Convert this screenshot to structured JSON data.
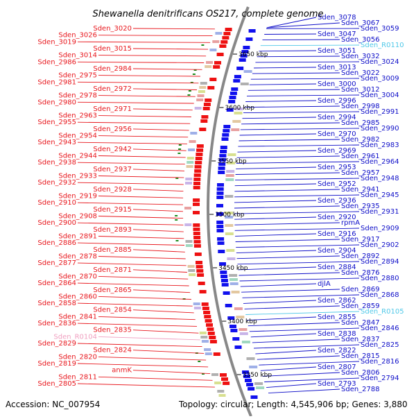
{
  "title": "Shewanella denitrificans OS217, complete genome",
  "accession": "Accession: NC_007954",
  "topology": "Topology: circular; Length: 4,545,906 bp; Genes: 3,880",
  "colors": {
    "left_label": "#e8161c",
    "right_label": "#0c0cc8",
    "rna_left": "#f0a0c0",
    "rna_right": "#4fc8e8",
    "backbone": "#888888",
    "forward_strand": "#ee1111",
    "reverse_strand": "#1111ee",
    "marker": "#1a8a1a"
  },
  "kbp_marks": [
    "3650 kbp",
    "3600 kbp",
    "3550 kbp",
    "3500 kbp",
    "3450 kbp",
    "3400 kbp",
    "3350 kbp"
  ],
  "left_genes": [
    "Sden_3020",
    "Sden_3026",
    "Sden_3019",
    "Sden_3015",
    "Sden_3014",
    "Sden_2986",
    "Sden_2984",
    "Sden_2975",
    "Sden_2981",
    "Sden_2972",
    "Sden_2978",
    "Sden_2980",
    "Sden_2971",
    "Sden_2963",
    "Sden_2955",
    "Sden_2956",
    "Sden_2954",
    "Sden_2943",
    "Sden_2942",
    "Sden_2944",
    "Sden_2938",
    "Sden_2937",
    "Sden_2933",
    "Sden_2932",
    "Sden_2928",
    "Sden_2919",
    "Sden_2910",
    "Sden_2915",
    "Sden_2908",
    "Sden_2900",
    "Sden_2893",
    "Sden_2891",
    "Sden_2886",
    "Sden_2885",
    "Sden_2878",
    "Sden_2877",
    "Sden_2871",
    "Sden_2870",
    "Sden_2864",
    "Sden_2865",
    "Sden_2860",
    "Sden_2858",
    "Sden_2854",
    "Sden_2841",
    "Sden_2836",
    "Sden_2835",
    "Sden_R0104",
    "Sden_2829",
    "Sden_2824",
    "Sden_2820",
    "Sden_2819",
    "anmK",
    "Sden_2811",
    "Sden_2805"
  ],
  "right_genes": [
    "Sden_3078",
    "Sden_3067",
    "Sden_3059",
    "Sden_3047",
    "Sden_3056",
    "Sden_R0110",
    "Sden_3051",
    "Sden_3032",
    "Sden_3024",
    "Sden_3013",
    "Sden_3022",
    "Sden_3009",
    "Sden_3000",
    "Sden_3012",
    "Sden_3004",
    "Sden_2996",
    "Sden_2998",
    "Sden_2991",
    "Sden_2994",
    "Sden_2985",
    "Sden_2990",
    "Sden_2970",
    "Sden_2982",
    "Sden_2983",
    "Sden_2969",
    "Sden_2961",
    "Sden_2964",
    "Sden_2953",
    "Sden_2957",
    "Sden_2948",
    "Sden_2952",
    "Sden_2941",
    "Sden_2945",
    "Sden_2936",
    "Sden_2935",
    "Sden_2931",
    "Sden_2920",
    "rpmA",
    "Sden_2909",
    "Sden_2916",
    "Sden_2917",
    "Sden_2902",
    "Sden_2904",
    "Sden_2892",
    "Sden_2894",
    "Sden_2884",
    "Sden_2876",
    "Sden_2880",
    "djlA",
    "Sden_2869",
    "Sden_2868",
    "Sden_2862",
    "Sden_2859",
    "Sden_R0105",
    "Sden_2855",
    "Sden_2847",
    "Sden_2846",
    "Sden_2838",
    "Sden_2837",
    "Sden_2825",
    "Sden_2822",
    "Sden_2815",
    "Sden_2816",
    "Sden_2807",
    "Sden_2806",
    "Sden_2794",
    "Sden_2793",
    "Sden_2788"
  ],
  "rna_genes": [
    "Sden_R0104",
    "Sden_R0110",
    "Sden_R0105"
  ]
}
